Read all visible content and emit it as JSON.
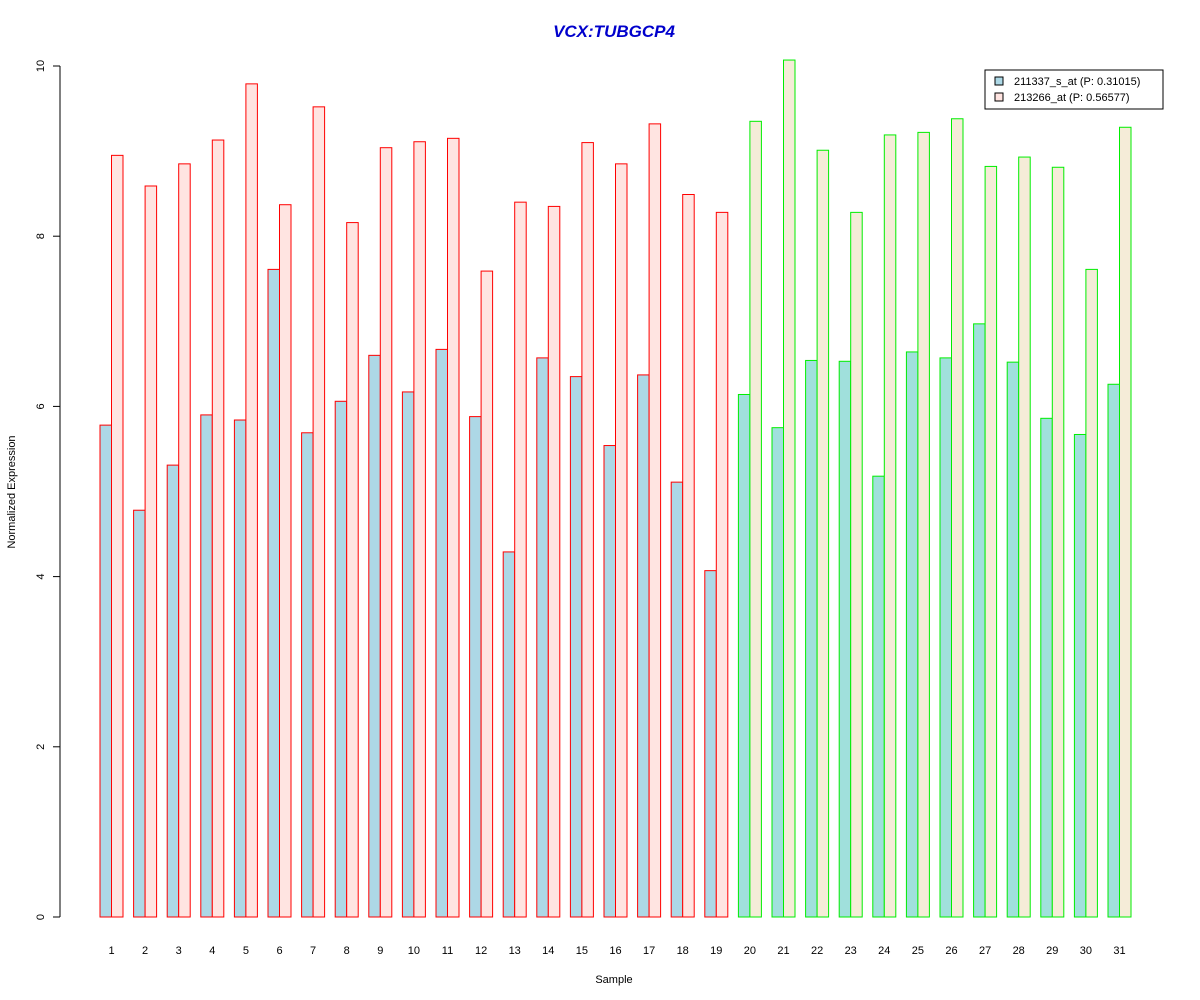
{
  "chart_data": {
    "type": "bar",
    "title": "VCX:TUBGCP4",
    "xlabel": "Sample",
    "ylabel": "Normalized Expression",
    "ylim": [
      0,
      10
    ],
    "yticks": [
      "0",
      "2",
      "4",
      "6",
      "8",
      "10"
    ],
    "categories": [
      "1",
      "2",
      "3",
      "4",
      "5",
      "6",
      "7",
      "8",
      "9",
      "10",
      "11",
      "12",
      "13",
      "14",
      "15",
      "16",
      "17",
      "18",
      "19",
      "20",
      "21",
      "22",
      "23",
      "24",
      "25",
      "26",
      "27",
      "28",
      "29",
      "30",
      "31"
    ],
    "series": [
      {
        "name": "211337_s_at (P: 0.31015)",
        "values": [
          5.78,
          4.78,
          5.31,
          5.9,
          5.84,
          7.61,
          5.69,
          6.06,
          6.6,
          6.17,
          6.67,
          5.88,
          4.29,
          6.57,
          6.35,
          5.54,
          6.37,
          5.11,
          4.07,
          6.14,
          5.75,
          6.54,
          6.53,
          5.18,
          6.64,
          6.57,
          6.97,
          6.52,
          5.86,
          5.67,
          6.26
        ]
      },
      {
        "name": "213266_at (P: 0.56577)",
        "values": [
          8.95,
          8.59,
          8.85,
          9.13,
          9.79,
          8.37,
          9.52,
          8.16,
          9.04,
          9.11,
          9.15,
          7.59,
          8.4,
          8.35,
          9.1,
          8.85,
          9.32,
          8.49,
          8.28,
          9.35,
          10.07,
          9.01,
          8.28,
          9.19,
          9.22,
          9.38,
          8.82,
          8.93,
          8.81,
          7.61,
          9.28
        ]
      }
    ],
    "group_split_index": 19,
    "legend_position": "top-right",
    "grid": false,
    "colors": {
      "title": "#0000cc",
      "series1_fill_group1": "#add8e6",
      "series2_fill_group1": "#ffe4e1",
      "series1_fill_group2": "#a0e0dc",
      "series2_fill_group2": "#f5ecd8",
      "outline_group1": "#ff0000",
      "outline_group2": "#00ee00",
      "legend_fill_1": "#add8e6",
      "legend_fill_2": "#ffe4e1"
    }
  }
}
